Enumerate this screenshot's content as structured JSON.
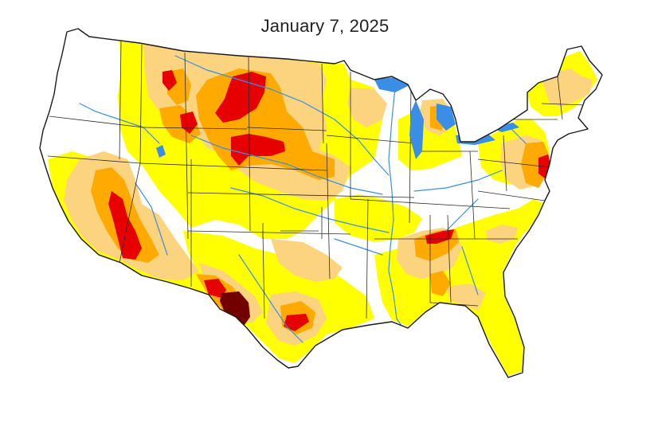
{
  "title": "January 7, 2025",
  "drought_colors": {
    "D0": "#ffff00",
    "D1": "#fcd37f",
    "D2": "#ffaa00",
    "D3": "#e60000",
    "D4": "#730000"
  },
  "map_colors": {
    "land": "#ffffff",
    "outline": "#1a1a1a",
    "state_border": "#2b2b2b",
    "water": "#3a8ee6"
  }
}
